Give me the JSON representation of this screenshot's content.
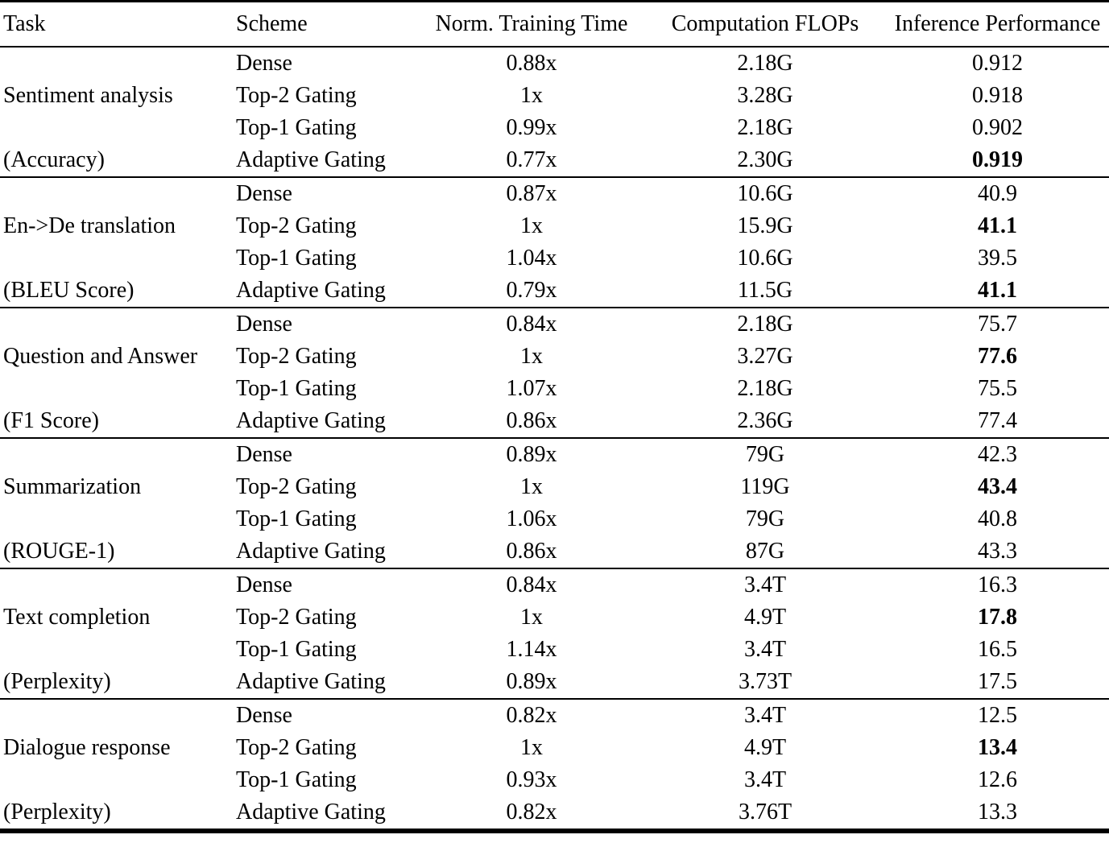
{
  "table": {
    "columns": [
      "Task",
      "Scheme",
      "Norm. Training Time",
      "Computation FLOPs",
      "Inference Performance"
    ],
    "groups": [
      {
        "task": "Sentiment analysis",
        "metric": "(Accuracy)",
        "rows": [
          {
            "scheme": "Dense",
            "training_time": "0.88x",
            "flops": "2.18G",
            "performance": "0.912",
            "bold": false
          },
          {
            "scheme": "Top-2 Gating",
            "training_time": "1x",
            "flops": "3.28G",
            "performance": "0.918",
            "bold": false
          },
          {
            "scheme": "Top-1 Gating",
            "training_time": "0.99x",
            "flops": "2.18G",
            "performance": "0.902",
            "bold": false
          },
          {
            "scheme": "Adaptive Gating",
            "training_time": "0.77x",
            "flops": "2.30G",
            "performance": "0.919",
            "bold": true
          }
        ]
      },
      {
        "task": "En->De translation",
        "metric": "(BLEU Score)",
        "rows": [
          {
            "scheme": "Dense",
            "training_time": "0.87x",
            "flops": "10.6G",
            "performance": "40.9",
            "bold": false
          },
          {
            "scheme": "Top-2 Gating",
            "training_time": "1x",
            "flops": "15.9G",
            "performance": "41.1",
            "bold": true
          },
          {
            "scheme": "Top-1 Gating",
            "training_time": "1.04x",
            "flops": "10.6G",
            "performance": "39.5",
            "bold": false
          },
          {
            "scheme": "Adaptive Gating",
            "training_time": "0.79x",
            "flops": "11.5G",
            "performance": "41.1",
            "bold": true
          }
        ]
      },
      {
        "task": "Question and Answer",
        "metric": "(F1 Score)",
        "rows": [
          {
            "scheme": "Dense",
            "training_time": "0.84x",
            "flops": "2.18G",
            "performance": "75.7",
            "bold": false
          },
          {
            "scheme": "Top-2 Gating",
            "training_time": "1x",
            "flops": "3.27G",
            "performance": "77.6",
            "bold": true
          },
          {
            "scheme": "Top-1 Gating",
            "training_time": "1.07x",
            "flops": "2.18G",
            "performance": "75.5",
            "bold": false
          },
          {
            "scheme": "Adaptive Gating",
            "training_time": "0.86x",
            "flops": "2.36G",
            "performance": "77.4",
            "bold": false
          }
        ]
      },
      {
        "task": "Summarization",
        "metric": "(ROUGE-1)",
        "rows": [
          {
            "scheme": "Dense",
            "training_time": "0.89x",
            "flops": "79G",
            "performance": "42.3",
            "bold": false
          },
          {
            "scheme": "Top-2 Gating",
            "training_time": "1x",
            "flops": "119G",
            "performance": "43.4",
            "bold": true
          },
          {
            "scheme": "Top-1 Gating",
            "training_time": "1.06x",
            "flops": "79G",
            "performance": "40.8",
            "bold": false
          },
          {
            "scheme": "Adaptive Gating",
            "training_time": "0.86x",
            "flops": "87G",
            "performance": "43.3",
            "bold": false
          }
        ]
      },
      {
        "task": "Text completion",
        "metric": "(Perplexity)",
        "rows": [
          {
            "scheme": "Dense",
            "training_time": "0.84x",
            "flops": "3.4T",
            "performance": "16.3",
            "bold": false
          },
          {
            "scheme": "Top-2 Gating",
            "training_time": "1x",
            "flops": "4.9T",
            "performance": "17.8",
            "bold": true
          },
          {
            "scheme": "Top-1 Gating",
            "training_time": "1.14x",
            "flops": "3.4T",
            "performance": "16.5",
            "bold": false
          },
          {
            "scheme": "Adaptive Gating",
            "training_time": "0.89x",
            "flops": "3.73T",
            "performance": "17.5",
            "bold": false
          }
        ]
      },
      {
        "task": "Dialogue response",
        "metric": "(Perplexity)",
        "rows": [
          {
            "scheme": "Dense",
            "training_time": "0.82x",
            "flops": "3.4T",
            "performance": "12.5",
            "bold": false
          },
          {
            "scheme": "Top-2 Gating",
            "training_time": "1x",
            "flops": "4.9T",
            "performance": "13.4",
            "bold": true
          },
          {
            "scheme": "Top-1 Gating",
            "training_time": "0.93x",
            "flops": "3.4T",
            "performance": "12.6",
            "bold": false
          },
          {
            "scheme": "Adaptive Gating",
            "training_time": "0.82x",
            "flops": "3.76T",
            "performance": "13.3",
            "bold": false
          }
        ]
      }
    ]
  }
}
